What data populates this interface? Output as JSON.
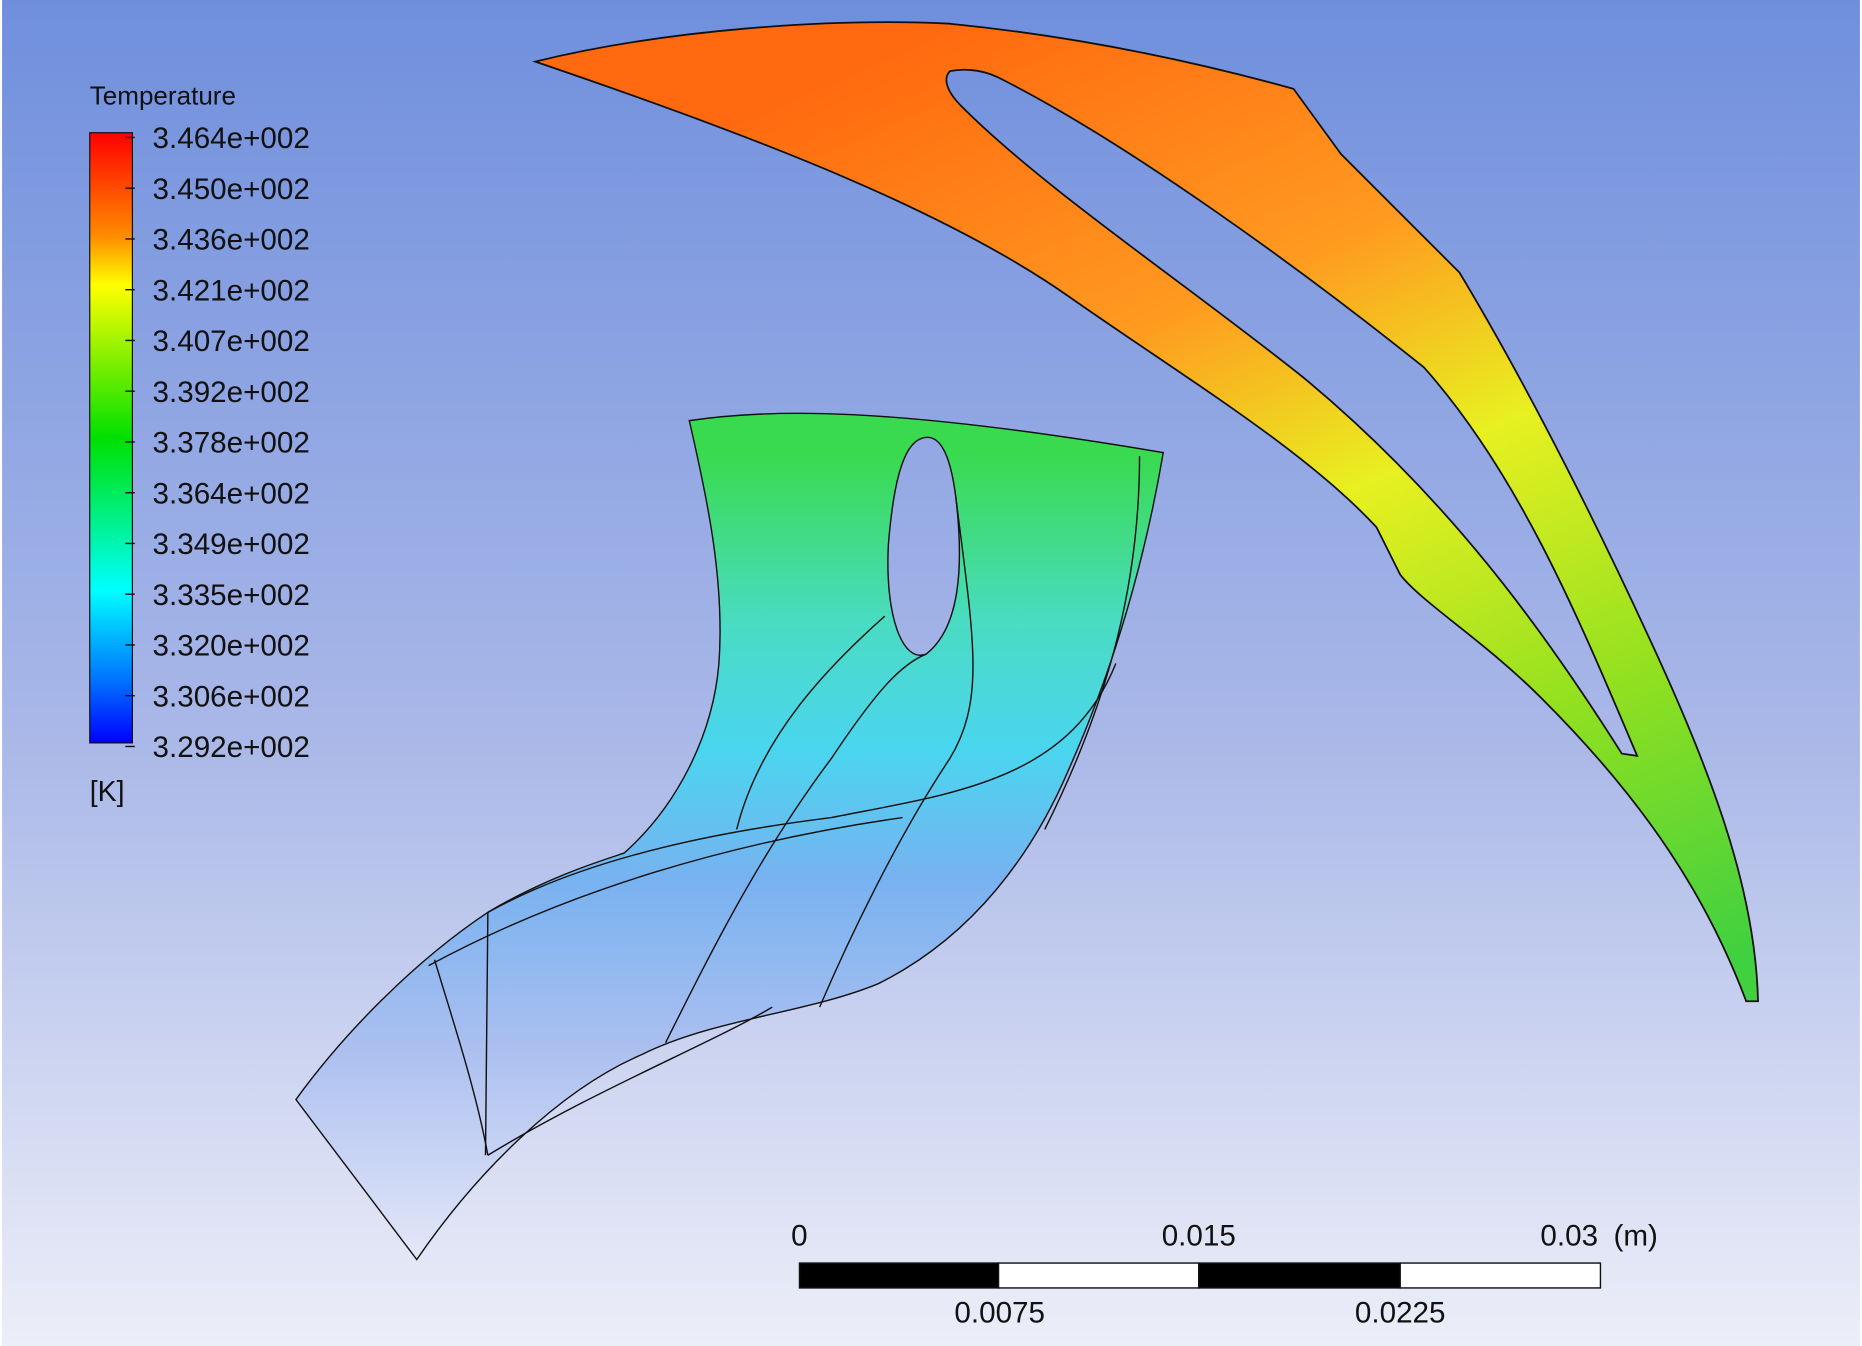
{
  "legend": {
    "title": "Temperature",
    "labels": [
      "3.464e+002",
      "3.450e+002",
      "3.436e+002",
      "3.421e+002",
      "3.407e+002",
      "3.392e+002",
      "3.378e+002",
      "3.364e+002",
      "3.349e+002",
      "3.335e+002",
      "3.320e+002",
      "3.306e+002",
      "3.292e+002"
    ],
    "unit": "[K]"
  },
  "scale_bar": {
    "top_labels": [
      "0",
      "0.015",
      "0.03"
    ],
    "unit": "(m)",
    "bottom_labels": [
      "0.0075",
      "0.0225"
    ]
  }
}
